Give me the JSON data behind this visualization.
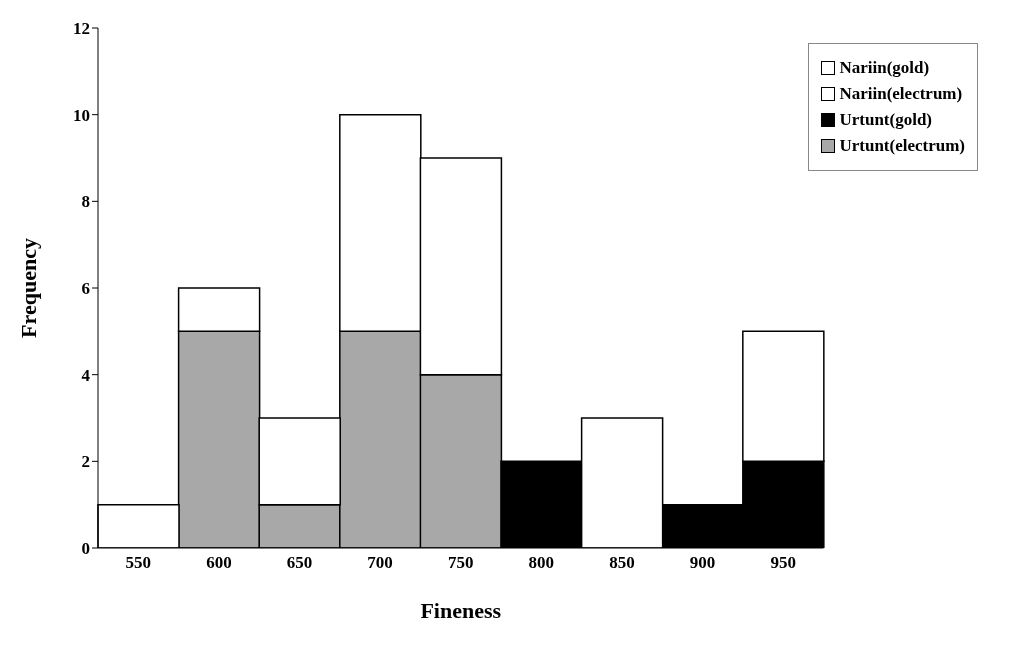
{
  "chart_data": {
    "type": "bar",
    "stacked": true,
    "xlabel": "Fineness",
    "ylabel": "Frequency",
    "categories": [
      "550",
      "600",
      "650",
      "700",
      "750",
      "800",
      "850",
      "900",
      "950"
    ],
    "series": [
      {
        "name": "Urtunt(electrum)",
        "color": "#a8a8a8",
        "values": [
          null,
          5,
          1,
          5,
          4,
          null,
          null,
          null,
          null
        ]
      },
      {
        "name": "Urtunt(gold)",
        "color": "#000000",
        "values": [
          null,
          null,
          null,
          null,
          null,
          2,
          null,
          1,
          2
        ]
      },
      {
        "name": "Nariin(electrum)",
        "color": "#ffffff",
        "values": [
          1,
          1,
          2,
          5,
          5,
          null,
          null,
          null,
          null
        ]
      },
      {
        "name": "Nariin(gold)",
        "color": "#ffffff",
        "values": [
          null,
          null,
          null,
          null,
          null,
          null,
          3,
          null,
          3
        ]
      }
    ],
    "ylim": [
      0,
      12
    ],
    "yticks": [
      0,
      2,
      4,
      6,
      8,
      10,
      12
    ],
    "legend": "top right"
  }
}
